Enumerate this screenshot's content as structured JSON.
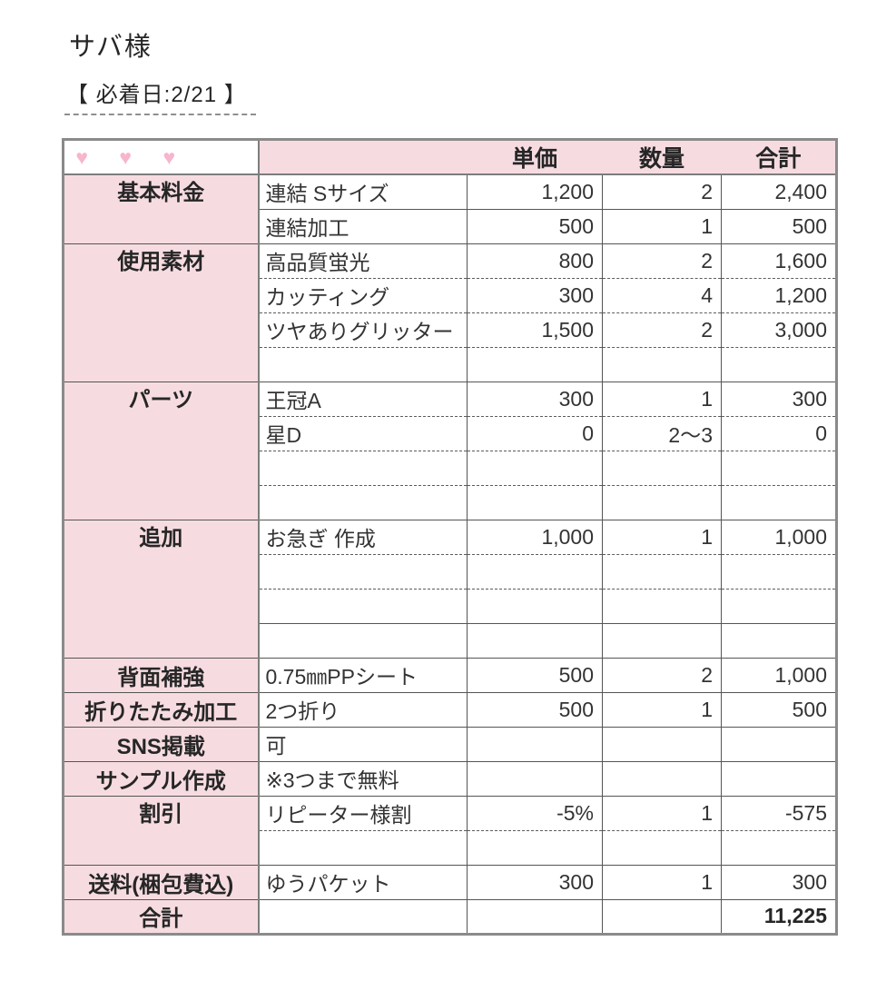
{
  "page": {
    "title": "サバ様",
    "deadline": "【 必着日:2/21 】"
  },
  "colors": {
    "pink_bg": "#f6dce1",
    "heart_pink": "#f7b5ce",
    "frame": "#8a8a8a",
    "line": "#555555"
  },
  "table": {
    "header": {
      "hearts": "♥ ♥ ♥",
      "item": "",
      "unit_price": "単価",
      "quantity": "数量",
      "total": "合計"
    },
    "rows": [
      {
        "category": "基本料金",
        "rowspan": 2,
        "item": "連結 Sサイズ",
        "unit": "1,200",
        "qty": "2",
        "total": "2,400",
        "sep": "none"
      },
      {
        "item": "連結加工",
        "unit": "500",
        "qty": "1",
        "total": "500",
        "sep": "solid"
      },
      {
        "category": "使用素材",
        "rowspan": 4,
        "item": "高品質蛍光",
        "unit": "800",
        "qty": "2",
        "total": "1,600",
        "sep": "solid"
      },
      {
        "item": "カッティング",
        "unit": "300",
        "qty": "4",
        "total": "1,200",
        "sep": "dashed"
      },
      {
        "item": "ツヤありグリッター",
        "unit": "1,500",
        "qty": "2",
        "total": "3,000",
        "sep": "dashed"
      },
      {
        "item": "",
        "unit": "",
        "qty": "",
        "total": "",
        "sep": "dashed"
      },
      {
        "category": "パーツ",
        "rowspan": 4,
        "item": "王冠A",
        "unit": "300",
        "qty": "1",
        "total": "300",
        "sep": "solid"
      },
      {
        "item": "星D",
        "unit": "0",
        "qty": "2〜3",
        "total": "0",
        "sep": "dashed"
      },
      {
        "item": "",
        "unit": "",
        "qty": "",
        "total": "",
        "sep": "dashed"
      },
      {
        "item": "",
        "unit": "",
        "qty": "",
        "total": "",
        "sep": "dashed"
      },
      {
        "category": "追加",
        "rowspan": 4,
        "item": "お急ぎ 作成",
        "unit": "1,000",
        "qty": "1",
        "total": "1,000",
        "sep": "solid"
      },
      {
        "item": "",
        "unit": "",
        "qty": "",
        "total": "",
        "sep": "dashed"
      },
      {
        "item": "",
        "unit": "",
        "qty": "",
        "total": "",
        "sep": "dashed"
      },
      {
        "item": "",
        "unit": "",
        "qty": "",
        "total": "",
        "sep": "solid"
      },
      {
        "category": "背面補強",
        "rowspan": 1,
        "item": "0.75㎜PPシート",
        "unit": "500",
        "qty": "2",
        "total": "1,000",
        "sep": "solid"
      },
      {
        "category": "折りたたみ加工",
        "rowspan": 1,
        "item": "2つ折り",
        "unit": "500",
        "qty": "1",
        "total": "500",
        "sep": "solid"
      },
      {
        "category": "SNS掲載",
        "rowspan": 1,
        "item": "可",
        "unit": "",
        "qty": "",
        "total": "",
        "sep": "solid"
      },
      {
        "category": "サンプル作成",
        "rowspan": 1,
        "item": "※3つまで無料",
        "unit": "",
        "qty": "",
        "total": "",
        "sep": "solid"
      },
      {
        "category": "割引",
        "rowspan": 2,
        "item": "リピーター様割",
        "unit": "-5%",
        "qty": "1",
        "total": "-575",
        "sep": "solid"
      },
      {
        "item": "",
        "unit": "",
        "qty": "",
        "total": "",
        "sep": "dashed"
      },
      {
        "category": "送料(梱包費込)",
        "rowspan": 1,
        "item": "ゆうパケット",
        "unit": "300",
        "qty": "1",
        "total": "300",
        "sep": "solid"
      },
      {
        "category": "合計",
        "rowspan": 1,
        "item": "",
        "unit": "",
        "qty": "",
        "total": "11,225",
        "sep": "solid",
        "total_bold": true
      }
    ]
  }
}
